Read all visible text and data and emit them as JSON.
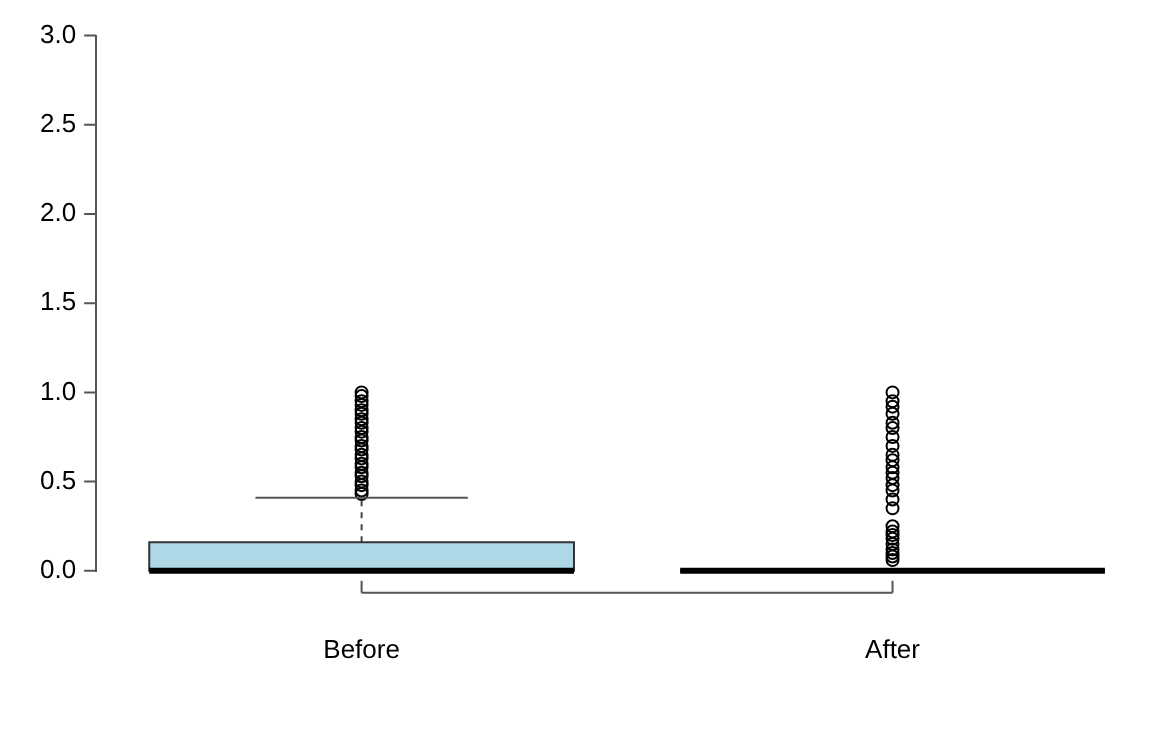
{
  "chart_data": {
    "type": "box",
    "categories": [
      "Before",
      "After"
    ],
    "colors": [
      "#add8e6",
      null
    ],
    "ylim": [
      0,
      3
    ],
    "yticks": [
      {
        "value": 0,
        "label": "0.0"
      },
      0.5,
      {
        "value": 1,
        "label": "1.0"
      },
      1.5,
      {
        "value": 2,
        "label": "2.0"
      },
      2.5,
      {
        "value": 3,
        "label": "3.0"
      }
    ],
    "legend": false,
    "marker": "circle",
    "boxes": [
      {
        "low": 0,
        "q1": 0,
        "median": 0,
        "q3": 0.16,
        "high": 0.41,
        "outliers": [
          0.43,
          0.45,
          0.48,
          0.5,
          0.53,
          0.55,
          0.58,
          0.6,
          0.63,
          0.65,
          0.68,
          0.7,
          0.73,
          0.75,
          0.78,
          0.8,
          0.83,
          0.85,
          0.88,
          0.9,
          0.93,
          0.95,
          0.98,
          1
        ]
      },
      {
        "low": 0,
        "q1": 0,
        "median": 0,
        "q3": 0,
        "high": 0,
        "outliers": [
          0.06,
          0.08,
          0.1,
          0.12,
          0.15,
          0.18,
          0.2,
          0.22,
          0.25,
          0.35,
          0.4,
          0.45,
          0.48,
          0.52,
          0.55,
          0.58,
          0.62,
          0.65,
          0.7,
          0.75,
          0.8,
          0.83,
          0.88,
          0.92,
          0.95,
          1
        ]
      }
    ]
  }
}
